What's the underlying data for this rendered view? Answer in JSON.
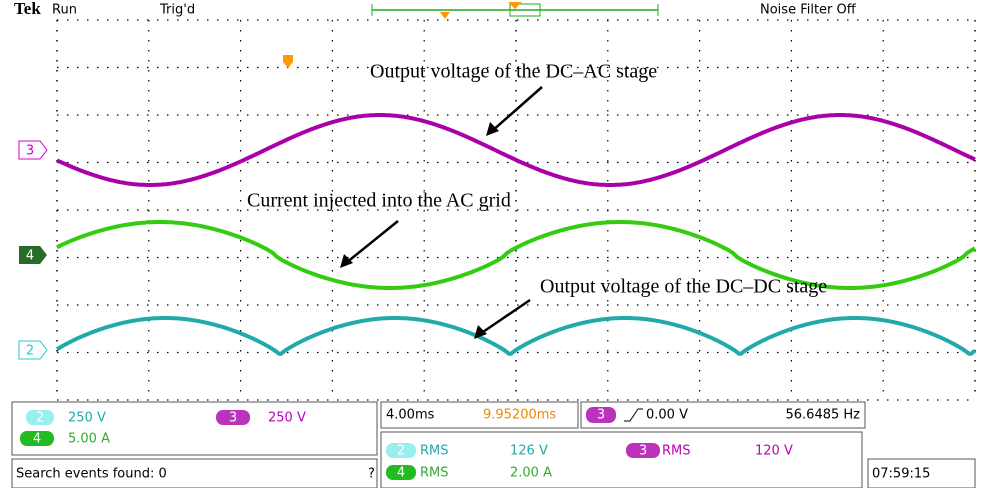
{
  "header": {
    "brand": "Tek",
    "status": "Run",
    "trigger": "Trig'd",
    "filter": "Noise Filter Off"
  },
  "channels": {
    "ch2": "2",
    "ch3": "3",
    "ch4": "4"
  },
  "annotations": [
    "Output voltage of the DC–AC stage",
    "Current injected into the AC grid",
    "Output voltage of the DC–DC stage"
  ],
  "readout": {
    "ch2_scale": "250 V",
    "ch3_scale": "250 V",
    "ch4_scale": "5.00 A",
    "timebase": "4.00ms",
    "position": "9.95200ms",
    "trigger_level": "0.00 V",
    "frequency": "56.6485 Hz",
    "rms_label": "RMS",
    "ch2_rms": "126 V",
    "ch3_rms": "120 V",
    "ch4_rms": "2.00 A",
    "search": "Search events found: 0",
    "help": "?",
    "time": "07:59:15"
  }
}
